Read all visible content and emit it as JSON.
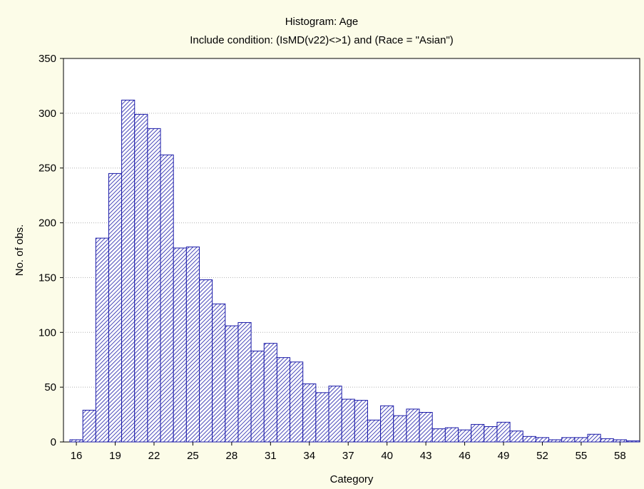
{
  "colors": {
    "background": "#fcfce8",
    "plot_background": "#ffffff",
    "bar_stroke": "#1a1aa8",
    "bar_hatch": "#1a1aa8",
    "grid": "#b0b0b0"
  },
  "chart_data": {
    "type": "bar",
    "title": "Histogram: Age",
    "subtitle": "Include condition: (IsMD(v22)<>1) and (Race = \"Asian\")",
    "xlabel": "Category",
    "ylabel": "No. of obs.",
    "ylim": [
      0,
      350
    ],
    "yticks": [
      0,
      50,
      100,
      150,
      200,
      250,
      300,
      350
    ],
    "xticks": [
      "16",
      "19",
      "22",
      "25",
      "28",
      "31",
      "34",
      "37",
      "40",
      "43",
      "46",
      "49",
      "52",
      "55",
      "58"
    ],
    "grid": "horizontal dotted",
    "categories": [
      "16",
      "17",
      "18",
      "19",
      "20",
      "21",
      "22",
      "23",
      "24",
      "25",
      "26",
      "27",
      "28",
      "29",
      "30",
      "31",
      "32",
      "33",
      "34",
      "35",
      "36",
      "37",
      "38",
      "39",
      "40",
      "41",
      "42",
      "43",
      "44",
      "45",
      "46",
      "47",
      "48",
      "49",
      "50",
      "51",
      "52",
      "53",
      "54",
      "55",
      "56",
      "57",
      "58",
      "59"
    ],
    "values": [
      2,
      29,
      186,
      245,
      312,
      299,
      286,
      262,
      177,
      178,
      148,
      126,
      106,
      109,
      83,
      90,
      77,
      73,
      53,
      45,
      51,
      39,
      38,
      20,
      33,
      24,
      30,
      27,
      12,
      13,
      11,
      16,
      14,
      18,
      10,
      5,
      4,
      2,
      4,
      4,
      7,
      3,
      2,
      1
    ]
  }
}
